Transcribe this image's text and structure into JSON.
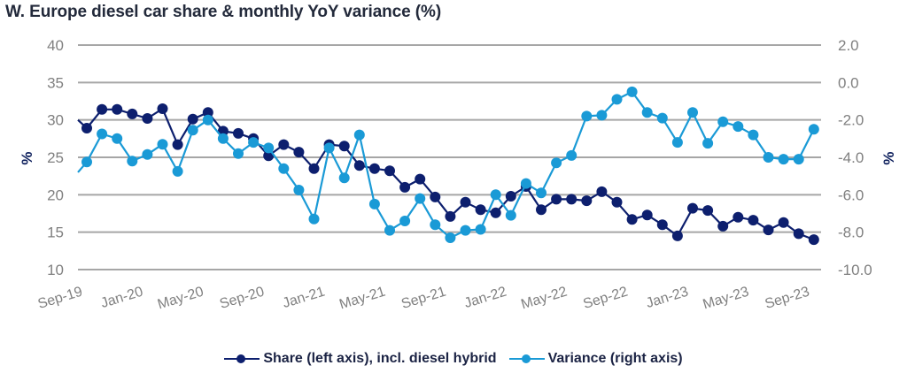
{
  "chart_data": {
    "type": "line",
    "title": "W. Europe diesel car share & monthly YoY variance (%)",
    "xlabel": "",
    "ylabel_left": "%",
    "ylabel_right": "%",
    "y_left_lim": [
      10,
      40
    ],
    "y_left_ticks": [
      "40",
      "35",
      "30",
      "25",
      "20",
      "15",
      "10"
    ],
    "y_left_tick_values": [
      40,
      35,
      30,
      25,
      20,
      15,
      10
    ],
    "y_right_lim": [
      -10,
      2
    ],
    "y_right_ticks": [
      "2.0",
      "0.0",
      "-2.0",
      "-4.0",
      "-6.0",
      "-8.0",
      "-10.0"
    ],
    "y_right_tick_values": [
      2,
      0,
      -2,
      -4,
      -6,
      -8,
      -10
    ],
    "grid": true,
    "legend_position": "bottom",
    "x": [
      "Sep-19",
      "Oct-19",
      "Nov-19",
      "Dec-19",
      "Jan-20",
      "Feb-20",
      "Mar-20",
      "Apr-20",
      "May-20",
      "Jun-20",
      "Jul-20",
      "Aug-20",
      "Sep-20",
      "Oct-20",
      "Nov-20",
      "Dec-20",
      "Jan-21",
      "Feb-21",
      "Mar-21",
      "Apr-21",
      "May-21",
      "Jun-21",
      "Jul-21",
      "Aug-21",
      "Sep-21",
      "Oct-21",
      "Nov-21",
      "Dec-21",
      "Jan-22",
      "Feb-22",
      "Mar-22",
      "Apr-22",
      "May-22",
      "Jun-22",
      "Jul-22",
      "Aug-22",
      "Sep-22",
      "Oct-22",
      "Nov-22",
      "Dec-22",
      "Jan-23",
      "Feb-23",
      "Mar-23",
      "Apr-23",
      "May-23",
      "Jun-23",
      "Jul-23",
      "Aug-23",
      "Sep-23"
    ],
    "x_tick_labels": [
      "Sep-19",
      "Jan-20",
      "May-20",
      "Sep-20",
      "Jan-21",
      "May-21",
      "Sep-21",
      "Jan-22",
      "May-22",
      "Sep-22",
      "Jan-23",
      "May-23",
      "Sep-23"
    ],
    "series": [
      {
        "name": "Share (left axis), incl. diesel hybrid",
        "axis": "left",
        "color": "#0d1f6e",
        "lead_in_value": 30.0,
        "values": [
          28.9,
          31.4,
          31.4,
          30.8,
          30.2,
          31.5,
          26.7,
          30.1,
          31.0,
          28.5,
          28.2,
          27.5,
          25.2,
          26.7,
          25.7,
          23.5,
          26.7,
          26.5,
          23.9,
          23.5,
          23.2,
          21.0,
          22.1,
          19.7,
          17.1,
          19.0,
          18.0,
          17.6,
          19.8,
          21.1,
          18.0,
          19.4,
          19.4,
          19.2,
          20.4,
          19.0,
          16.7,
          17.3,
          16.0,
          14.5,
          18.2,
          17.9,
          15.8,
          17.0,
          16.6,
          15.3,
          16.3,
          14.8,
          14.0
        ]
      },
      {
        "name": "Variance (right axis)",
        "axis": "right",
        "color": "#1a9ad6",
        "lead_in_value": -4.8,
        "values": [
          -4.25,
          -2.75,
          -3.0,
          -4.2,
          -3.85,
          -3.3,
          -4.75,
          -2.55,
          -2.0,
          -3.0,
          -3.8,
          -3.2,
          -3.5,
          -4.6,
          -5.75,
          -7.3,
          -3.5,
          -5.1,
          -2.8,
          -6.5,
          -7.9,
          -7.4,
          -6.2,
          -7.6,
          -8.3,
          -7.9,
          -7.85,
          -6.0,
          -7.1,
          -5.4,
          -5.9,
          -4.3,
          -3.9,
          -1.8,
          -1.75,
          -0.9,
          -0.5,
          -1.6,
          -1.9,
          -3.2,
          -1.6,
          -3.25,
          -2.1,
          -2.35,
          -2.8,
          -4.0,
          -4.1,
          -4.1,
          -2.5
        ]
      }
    ]
  }
}
